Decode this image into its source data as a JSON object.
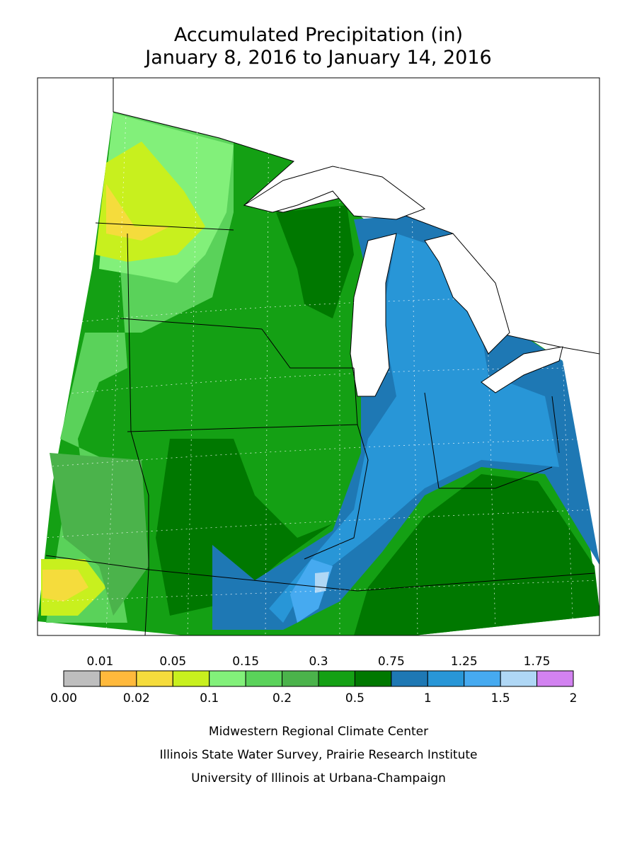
{
  "header": {
    "title": "Accumulated Precipitation (in)",
    "subtitle": "January 8, 2016 to January 14, 2016"
  },
  "legend": {
    "colors": [
      "#bebebe",
      "#ffb93c",
      "#f5dc3c",
      "#c8f01e",
      "#82f07a",
      "#5ad25a",
      "#4bb34b",
      "#14a014",
      "#007800",
      "#1e78b4",
      "#2896d7",
      "#46aaf0",
      "#afd7f5",
      "#d282f0"
    ],
    "upper_labels": [
      "0.01",
      "0.05",
      "0.15",
      "0.3",
      "0.75",
      "1.25",
      "1.75"
    ],
    "lower_labels": [
      "0.00",
      "0.02",
      "0.1",
      "0.2",
      "0.5",
      "1",
      "1.5",
      "2"
    ]
  },
  "credits": [
    "Midwestern Regional Climate Center",
    "Illinois State Water Survey, Prairie Research Institute",
    "University of Illinois at Urbana-Champaign"
  ]
}
